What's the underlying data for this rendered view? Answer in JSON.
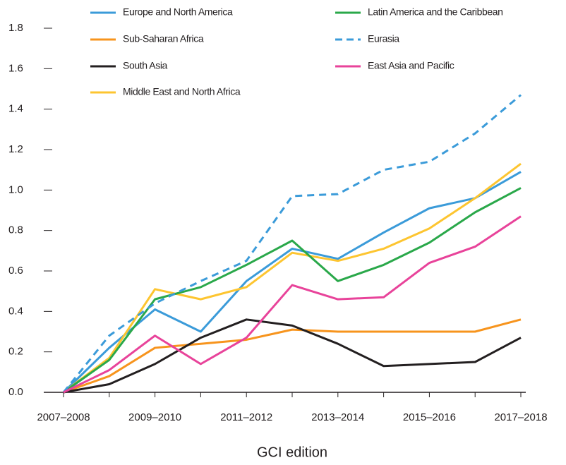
{
  "chart_data": {
    "type": "line",
    "xlabel": "GCI edition",
    "categories": [
      "2007–2008",
      null,
      "2009–2010",
      null,
      "2011–2012",
      null,
      "2013–2014",
      null,
      "2015–2016",
      null,
      "2017–2018"
    ],
    "ylim": [
      0,
      1.8
    ],
    "yticks": [
      {
        "value": 0,
        "label": "0.0"
      },
      0.2,
      0.4,
      0.6,
      0.8,
      {
        "value": 1,
        "label": "1.0"
      },
      1.2,
      1.4,
      1.6,
      1.8
    ],
    "series": [
      {
        "name": "Europe and North America",
        "color": "#3b9bd9",
        "values": [
          0,
          0.22,
          0.41,
          0.3,
          0.55,
          0.71,
          0.66,
          0.79,
          0.91,
          0.96,
          1.09
        ]
      },
      {
        "name": "Sub-Saharan Africa",
        "color": "#f7941d",
        "values": [
          0,
          0.08,
          0.22,
          0.24,
          0.26,
          0.31,
          0.3,
          0.3,
          0.3,
          0.3,
          0.36
        ]
      },
      {
        "name": "South Asia",
        "color": "#231f20",
        "values": [
          0,
          0.04,
          0.14,
          0.27,
          0.36,
          0.33,
          0.24,
          0.13,
          0.14,
          0.15,
          0.27
        ]
      },
      {
        "name": "Middle East and North Africa",
        "color": "#fdc530",
        "values": [
          0,
          0.17,
          0.51,
          0.46,
          0.52,
          0.69,
          0.65,
          0.71,
          0.81,
          0.96,
          1.13
        ]
      },
      {
        "name": "Latin America and the Caribbean",
        "color": "#2aa84a",
        "values": [
          0,
          0.16,
          0.46,
          0.52,
          0.63,
          0.75,
          0.55,
          0.63,
          0.74,
          0.89,
          1.01
        ]
      },
      {
        "name": "Eurasia",
        "color": "#3b9bd9",
        "dashed": true,
        "values": [
          0,
          0.28,
          0.44,
          0.55,
          0.65,
          0.97,
          0.98,
          1.1,
          1.14,
          1.28,
          1.47
        ]
      },
      {
        "name": "East Asia and Pacific",
        "color": "#e8439a",
        "values": [
          0,
          0.11,
          0.28,
          0.14,
          0.27,
          0.53,
          0.46,
          0.47,
          0.64,
          0.72,
          0.87
        ]
      }
    ]
  }
}
